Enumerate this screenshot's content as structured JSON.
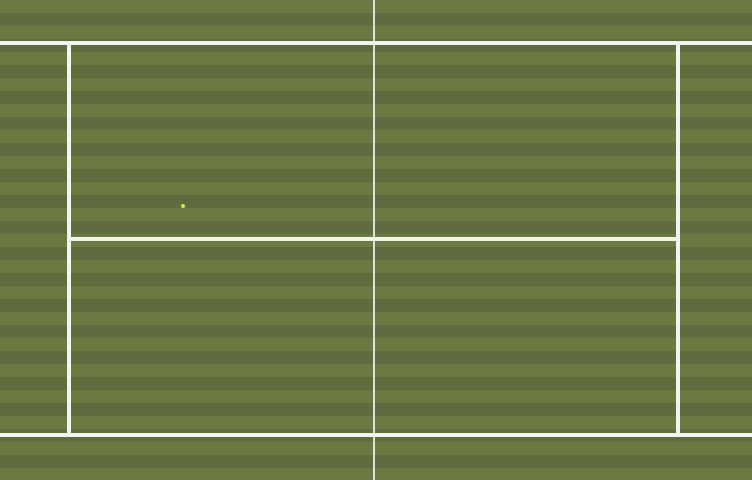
{
  "scene": {
    "type": "tennis-court-top-down",
    "surface": "grass",
    "colors": {
      "grass_light": "#6a7a42",
      "grass_dark": "#5f6c3e",
      "court_lines": "#f3f4ee",
      "net": "#f5f5f0",
      "ball": "#d9e63a"
    }
  }
}
